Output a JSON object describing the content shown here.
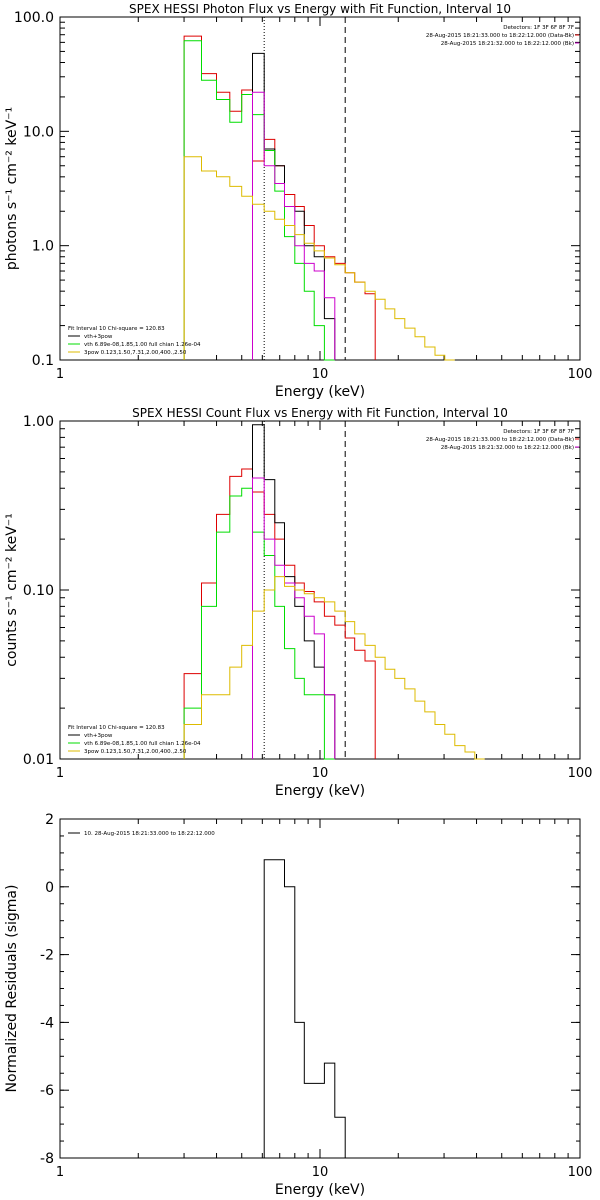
{
  "colors": {
    "black": "#000000",
    "red": "#dd0000",
    "green": "#00dd00",
    "magenta": "#cc00cc",
    "yellow": "#ddbb00"
  },
  "chart_data": [
    {
      "type": "line",
      "title": "SPEX HESSI Photon Flux vs Energy with Fit Function, Interval 10",
      "xlabel": "Energy (keV)",
      "ylabel": "photons s⁻¹ cm⁻² keV⁻¹",
      "xscale": "log",
      "yscale": "log",
      "xlim": [
        1,
        100
      ],
      "ylim": [
        0.1,
        100
      ],
      "xticks": [
        1,
        10,
        100
      ],
      "xtick_labels": [
        "1",
        "10",
        "100"
      ],
      "yticks": [
        0.1,
        1,
        10,
        100
      ],
      "ytick_labels": [
        "0.1",
        "1.0",
        "10.0",
        "100.0"
      ],
      "info_lines": [
        "Detectors: 1F 3F 6F 8F 7F",
        "28-Aug-2015 18:21:33.000 to 18:22:12.000 (Data-Bk)",
        "28-Aug-2015 18:21:32.000 to 18:22:12.000 (Bk)"
      ],
      "legend_head": "Fit Interval 10   Chi-square = 120.83",
      "legend_entries": [
        {
          "label": "vth+3pow",
          "color": "black"
        },
        {
          "label": "vth 6.89e-08,1.85,1.00  full chian 1.26e-04",
          "color": "green"
        },
        {
          "label": "3pow 0.123,1.50,7.31,2.00,400.,2.50",
          "color": "yellow"
        }
      ],
      "vlines": [
        {
          "x": 6.1,
          "style": "dotted",
          "color": "black"
        },
        {
          "x": 12.5,
          "style": "dashed",
          "color": "black"
        }
      ],
      "bin_edges": [
        3,
        3.5,
        4,
        4.5,
        5,
        5.5,
        6.1,
        6.7,
        7.3,
        8,
        8.7,
        9.5,
        10.4,
        11.4,
        12.5,
        13.6,
        14.9,
        16.3,
        17.8,
        19.4,
        21.2,
        23.2,
        25.3,
        27.7,
        30.2,
        33.0,
        36.1,
        39.4,
        43
      ],
      "series": [
        {
          "color": "red",
          "values": [
            68,
            32,
            22,
            15,
            23,
            5.5,
            8.5,
            5,
            2.8,
            2.2,
            1.5,
            1.0,
            0.8,
            0.7,
            0.58,
            0.48,
            0.38,
            null,
            null,
            null,
            null,
            null,
            null,
            null,
            null,
            null,
            null,
            null
          ]
        },
        {
          "color": "black",
          "values": [
            null,
            null,
            null,
            null,
            null,
            48,
            7,
            5,
            2.2,
            2.0,
            1.0,
            0.8,
            0.23,
            null,
            null,
            null,
            null,
            null,
            null,
            null,
            null,
            null,
            null,
            null,
            null,
            null,
            null,
            null
          ]
        },
        {
          "color": "green",
          "values": [
            62,
            28,
            19,
            12,
            21,
            14,
            6.8,
            3,
            1.2,
            0.7,
            0.4,
            0.2,
            0.1,
            null,
            null,
            null,
            null,
            null,
            null,
            null,
            null,
            null,
            null,
            null,
            null,
            null,
            null,
            null
          ]
        },
        {
          "color": "magenta",
          "values": [
            null,
            null,
            null,
            null,
            null,
            22,
            5,
            3.5,
            2.2,
            1.0,
            0.7,
            0.6,
            0.35,
            null,
            null,
            null,
            null,
            null,
            null,
            null,
            null,
            null,
            null,
            null,
            null,
            null,
            null,
            null
          ]
        },
        {
          "color": "yellow",
          "values": [
            6,
            4.5,
            4,
            3.3,
            2.7,
            2.3,
            2.0,
            1.7,
            1.5,
            1.25,
            1.05,
            0.9,
            0.78,
            0.68,
            0.58,
            0.48,
            0.4,
            0.34,
            0.28,
            0.23,
            0.19,
            0.16,
            0.13,
            0.11,
            0.1,
            null,
            null,
            null
          ]
        }
      ]
    },
    {
      "type": "line",
      "title": "SPEX HESSI Count Flux vs Energy with Fit Function, Interval 10",
      "xlabel": "Energy (keV)",
      "ylabel": "counts s⁻¹ cm⁻² keV⁻¹",
      "xscale": "log",
      "yscale": "log",
      "xlim": [
        1,
        100
      ],
      "ylim": [
        0.01,
        1
      ],
      "xticks": [
        1,
        10,
        100
      ],
      "xtick_labels": [
        "1",
        "10",
        "100"
      ],
      "yticks": [
        0.01,
        0.1,
        1
      ],
      "ytick_labels": [
        "0.01",
        "0.10",
        "1.00"
      ],
      "info_lines": [
        "Detectors: 1F 3F 6F 8F 7F",
        "28-Aug-2015 18:21:33.000 to 18:22:12.000 (Data-Bk)",
        "28-Aug-2015 18:21:32.000 to 18:22:12.000 (Bk)"
      ],
      "legend_head": "Fit Interval 10   Chi-square = 120.83",
      "legend_entries": [
        {
          "label": "vth+3pow",
          "color": "black"
        },
        {
          "label": "vth 6.89e-08,1.85,1.00  full chian 1.26e-04",
          "color": "green"
        },
        {
          "label": "3pow 0.123,1.50,7.31,2.00,400.,2.50",
          "color": "yellow"
        }
      ],
      "vlines": [
        {
          "x": 6.1,
          "style": "dotted",
          "color": "black"
        },
        {
          "x": 12.5,
          "style": "dashed",
          "color": "black"
        }
      ],
      "bin_edges": [
        3,
        3.5,
        4,
        4.5,
        5,
        5.5,
        6.1,
        6.7,
        7.3,
        8,
        8.7,
        9.5,
        10.4,
        11.4,
        12.5,
        13.6,
        14.9,
        16.3,
        17.8,
        19.4,
        21.2,
        23.2,
        25.3,
        27.7,
        30.2,
        33.0,
        36.1,
        39.4,
        43
      ],
      "series": [
        {
          "color": "red",
          "values": [
            0.032,
            0.11,
            0.28,
            0.47,
            0.52,
            0.38,
            0.28,
            0.2,
            0.14,
            0.11,
            0.098,
            0.085,
            0.07,
            0.062,
            0.052,
            0.044,
            0.038,
            null,
            null,
            null,
            null,
            null,
            null,
            null,
            null,
            null,
            null,
            null
          ]
        },
        {
          "color": "black",
          "values": [
            null,
            null,
            null,
            null,
            null,
            0.95,
            0.45,
            0.25,
            0.12,
            0.08,
            0.05,
            0.035,
            0.024,
            null,
            null,
            null,
            null,
            null,
            null,
            null,
            null,
            null,
            null,
            null,
            null,
            null,
            null,
            null
          ]
        },
        {
          "color": "green",
          "values": [
            0.02,
            0.08,
            0.22,
            0.36,
            0.4,
            0.22,
            0.16,
            0.08,
            0.045,
            0.03,
            0.024,
            0.024,
            0.01,
            null,
            null,
            null,
            null,
            null,
            null,
            null,
            null,
            null,
            null,
            null,
            null,
            null,
            null,
            null
          ]
        },
        {
          "color": "magenta",
          "values": [
            null,
            null,
            null,
            null,
            null,
            0.46,
            0.2,
            0.14,
            0.11,
            0.09,
            0.07,
            0.055,
            0.024,
            null,
            null,
            null,
            null,
            null,
            null,
            null,
            null,
            null,
            null,
            null,
            null,
            null,
            null,
            null
          ]
        },
        {
          "color": "yellow",
          "values": [
            0.016,
            0.024,
            0.024,
            0.035,
            0.047,
            0.075,
            0.1,
            0.12,
            0.105,
            0.1,
            0.095,
            0.09,
            0.085,
            0.075,
            0.065,
            0.055,
            0.047,
            0.04,
            0.034,
            0.03,
            0.026,
            0.022,
            0.019,
            0.016,
            0.014,
            0.012,
            0.011,
            0.01
          ]
        }
      ]
    },
    {
      "type": "line",
      "title": "",
      "xlabel": "Energy (keV)",
      "ylabel": "Normalized Residuals (sigma)",
      "xscale": "log",
      "yscale": "linear",
      "xlim": [
        1,
        100
      ],
      "ylim": [
        -8,
        2
      ],
      "xticks": [
        1,
        10,
        100
      ],
      "xtick_labels": [
        "1",
        "10",
        "100"
      ],
      "yticks": [
        -8,
        -6,
        -4,
        -2,
        0,
        2
      ],
      "ytick_labels": [
        "-8",
        "-6",
        "-4",
        "-2",
        "0",
        "2"
      ],
      "legend_entries": [
        {
          "label": "10. 28-Aug-2015 18:21:33.000 to 18:22:12.000",
          "color": "black"
        }
      ],
      "bin_edges": [
        6.1,
        6.7,
        7.3,
        8,
        8.7,
        9.5,
        10.4,
        11.4,
        12.5
      ],
      "series": [
        {
          "color": "black",
          "values": [
            0.8,
            0.8,
            0.0,
            -4.0,
            -5.8,
            -5.8,
            -5.2,
            -6.8
          ]
        }
      ]
    }
  ]
}
